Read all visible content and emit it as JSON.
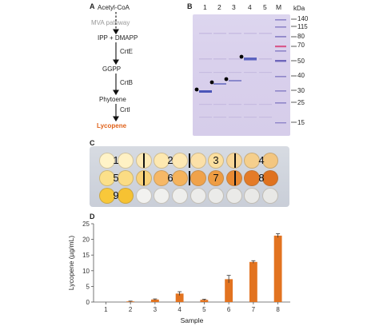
{
  "panel_a": {
    "label": "A",
    "acetyl": "Acetyl-CoA",
    "mva": "MVA pathway",
    "ipp": "IPP + DMAPP",
    "crte": "CrtE",
    "ggpp": "GGPP",
    "crtb": "CrtB",
    "phytoene": "Phytoene",
    "crti": "CrtI",
    "lycopene": "Lycopene"
  },
  "panel_b": {
    "label": "B",
    "kda_label": "kDa",
    "lanes": [
      "1",
      "2",
      "3",
      "4",
      "5",
      "M"
    ],
    "markers": [
      "140",
      "115",
      "80",
      "70",
      "50",
      "40",
      "30",
      "25",
      "15"
    ]
  },
  "panel_c": {
    "label": "C",
    "well_numbers": [
      "1",
      "2",
      "3",
      "4",
      "5",
      "6",
      "7",
      "8",
      "9"
    ]
  },
  "panel_d": {
    "label": "D"
  },
  "chart_data": {
    "type": "bar",
    "categories": [
      "1",
      "2",
      "3",
      "4",
      "5",
      "6",
      "7",
      "8"
    ],
    "values": [
      0,
      0.2,
      0.8,
      2.7,
      0.7,
      7.3,
      12.8,
      21.2
    ],
    "errors": [
      0,
      0.1,
      0.2,
      0.6,
      0.2,
      1.2,
      0.4,
      0.6
    ],
    "xlabel": "Sample",
    "ylabel": "Lycopene (µg/mL)",
    "ylim": [
      0,
      25
    ],
    "yticks": [
      "0",
      "5",
      "10",
      "15",
      "20",
      "25"
    ],
    "bar_color": "#e27320"
  }
}
